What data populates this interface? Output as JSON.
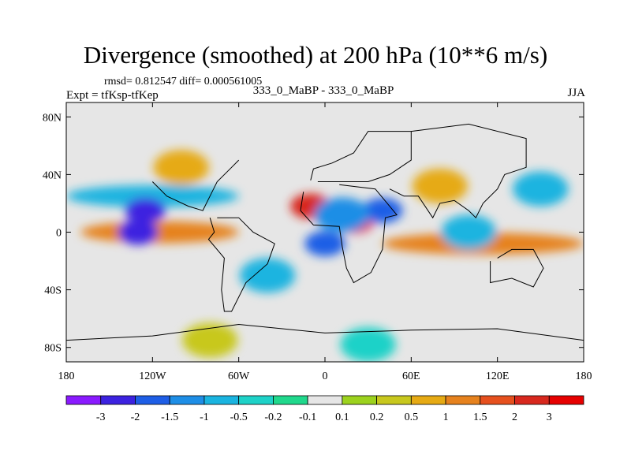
{
  "header": {
    "title": "Divergence (smoothed) at 200 hPa (10**6 m/s)",
    "stats": "rmsd= 0.812547 diff= 0.000561005",
    "experiment": "Expt = tfKsp-tfKep",
    "cases": "333_0_MaBP - 333_0_MaBP",
    "season": "JJA"
  },
  "colors": {
    "background_field": "#e6e6e6",
    "frame": "#000000"
  },
  "chart_data": {
    "type": "heatmap",
    "title": "Divergence (smoothed) at 200 hPa (10**6 m/s)",
    "projection": "cylindrical equidistant",
    "xlim": [
      -180,
      180
    ],
    "ylim": [
      -90,
      90
    ],
    "x_ticks": [
      {
        "value": -180,
        "label": "180"
      },
      {
        "value": -120,
        "label": "120W"
      },
      {
        "value": -60,
        "label": "60W"
      },
      {
        "value": 0,
        "label": "0"
      },
      {
        "value": 60,
        "label": "60E"
      },
      {
        "value": 120,
        "label": "120E"
      },
      {
        "value": 180,
        "label": "180"
      }
    ],
    "y_ticks": [
      {
        "value": 80,
        "label": "80N"
      },
      {
        "value": 40,
        "label": "40N"
      },
      {
        "value": 0,
        "label": "0"
      },
      {
        "value": -40,
        "label": "40S"
      },
      {
        "value": -80,
        "label": "80S"
      }
    ],
    "contour_levels": [
      -3,
      -2,
      -1.5,
      -1,
      -0.5,
      -0.2,
      -0.1,
      0.1,
      0.2,
      0.5,
      1,
      1.5,
      2,
      3
    ],
    "colorbar_colors": [
      "#8a1aff",
      "#3c22e0",
      "#1e5ee6",
      "#1e8ee6",
      "#1ab4e0",
      "#1ed2c8",
      "#20d88c",
      "#e6e6e6",
      "#9cd21e",
      "#c8c81e",
      "#e6aa14",
      "#e6821e",
      "#e6501e",
      "#d8281e",
      "#e60000"
    ],
    "features": [
      {
        "type": "band",
        "lat": 0,
        "lon_from": -170,
        "lon_to": -60,
        "value": 1.2
      },
      {
        "type": "band",
        "lat": -8,
        "lon_from": 40,
        "lon_to": 180,
        "value": 1.0
      },
      {
        "type": "band",
        "lat": 25,
        "lon_from": -180,
        "lon_to": -60,
        "value": -0.6
      },
      {
        "type": "blob",
        "lon": 20,
        "lat": 8,
        "value": 3.0
      },
      {
        "type": "blob",
        "lon": -10,
        "lat": 18,
        "value": 2.2
      },
      {
        "type": "blob",
        "lon": -125,
        "lat": 15,
        "value": -3.0
      },
      {
        "type": "blob",
        "lon": -130,
        "lat": 0,
        "value": -3.0
      },
      {
        "type": "blob",
        "lon": 0,
        "lat": -8,
        "value": -2.0
      },
      {
        "type": "blob",
        "lon": 40,
        "lat": 15,
        "value": -2.0
      },
      {
        "type": "blob",
        "lon": 12,
        "lat": 12,
        "value": -1.5
      },
      {
        "type": "blob",
        "lon": 100,
        "lat": 0,
        "value": -1.0
      },
      {
        "type": "blob",
        "lon": -80,
        "lat": -75,
        "value": 0.3
      },
      {
        "type": "blob",
        "lon": 30,
        "lat": -78,
        "value": -0.4
      },
      {
        "type": "blob",
        "lon": -100,
        "lat": 45,
        "value": 0.8
      },
      {
        "type": "blob",
        "lon": 80,
        "lat": 32,
        "value": 0.6
      },
      {
        "type": "blob",
        "lon": 150,
        "lat": 30,
        "value": -0.8
      },
      {
        "type": "blob",
        "lon": -40,
        "lat": -30,
        "value": -1.0
      }
    ]
  }
}
